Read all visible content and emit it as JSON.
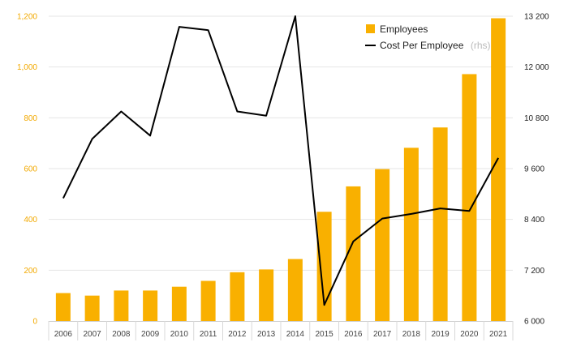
{
  "chart_data": {
    "type": "bar",
    "categories": [
      "2006",
      "2007",
      "2008",
      "2009",
      "2010",
      "2011",
      "2012",
      "2013",
      "2014",
      "2015",
      "2016",
      "2017",
      "2018",
      "2019",
      "2020",
      "2021"
    ],
    "series": [
      {
        "name": "Employees",
        "type": "bar",
        "axis": "left",
        "color": "#f9b000",
        "values": [
          110,
          100,
          120,
          120,
          135,
          158,
          192,
          203,
          244,
          430,
          530,
          598,
          682,
          762,
          972,
          1192
        ]
      },
      {
        "name": "Cost Per Employee",
        "name_suffix": "(rhs)",
        "type": "line",
        "axis": "right",
        "color": "#000000",
        "values": [
          8900,
          10300,
          10950,
          10380,
          12950,
          12870,
          10950,
          10850,
          13200,
          6380,
          7880,
          8420,
          8530,
          8660,
          8600,
          9850
        ]
      }
    ],
    "left_axis": {
      "ylim": [
        0,
        1200
      ],
      "ticks": [
        "0",
        "200",
        "400",
        "600",
        "800",
        "1,000",
        "1,200"
      ],
      "color": "#f2a900"
    },
    "right_axis": {
      "ylim": [
        6000,
        13200
      ],
      "ticks": [
        "6 000",
        "7 200",
        "8 400",
        "9 600",
        "10 800",
        "12 000",
        "13 200"
      ]
    },
    "grid": true,
    "legend_position": "top-right"
  }
}
